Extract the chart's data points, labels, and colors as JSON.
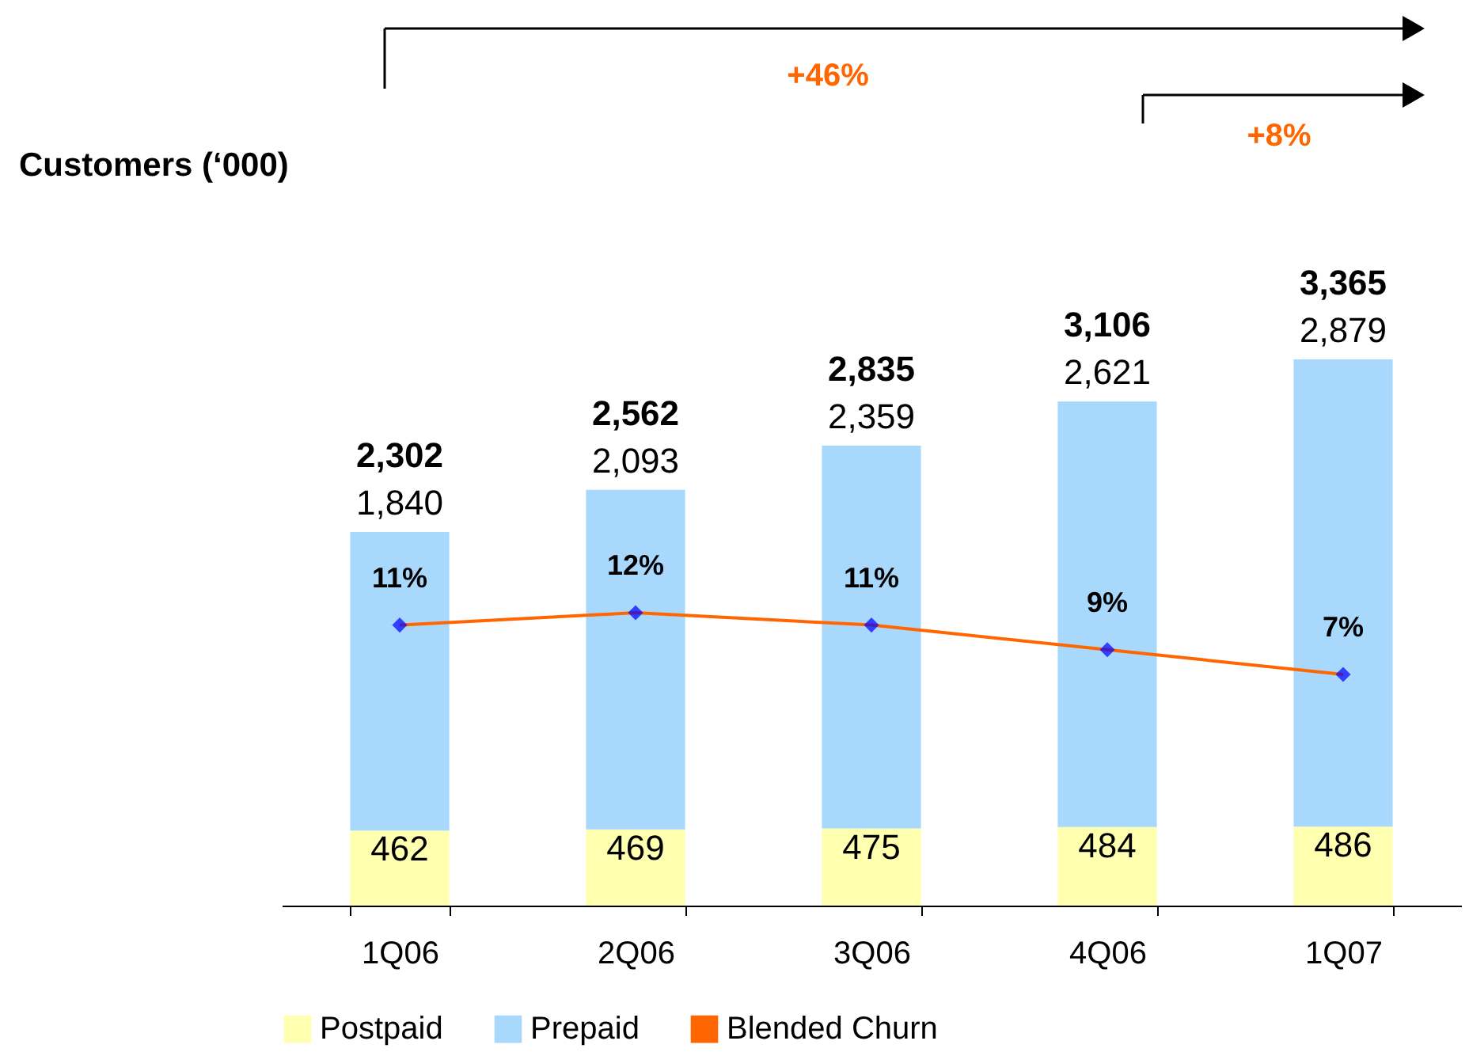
{
  "chart_data": {
    "type": "bar",
    "stacked": true,
    "categories": [
      "1Q06",
      "2Q06",
      "3Q06",
      "4Q06",
      "1Q07"
    ],
    "series": [
      {
        "name": "Postpaid",
        "color": "#ffffb0",
        "values": [
          462,
          469,
          475,
          484,
          486
        ]
      },
      {
        "name": "Prepaid",
        "color": "#a8d8fc",
        "values": [
          1840,
          2093,
          2359,
          2621,
          2879
        ],
        "value_labels": [
          "1,840",
          "2,093",
          "2,359",
          "2,621",
          "2,879"
        ]
      },
      {
        "name": "Blended Churn",
        "type": "line",
        "axis": "y2",
        "color": "#ff6600",
        "marker": "diamond",
        "colors": [
          "#0000ff",
          "#0000ff",
          "#0000ff",
          "#0000ff",
          "#0000ff"
        ],
        "value_labels": [
          "11%",
          "12%",
          "11%",
          "9%",
          "7%"
        ],
        "values": [
          11,
          12,
          11,
          9,
          7
        ]
      }
    ],
    "totals": [
      "2,302",
      "2,562",
      "2,835",
      "3,106",
      "3,365"
    ],
    "annotations": [
      "+46%",
      "+8%",
      "Customers (‘000)"
    ],
    "data_labels": true,
    "grid": false,
    "legend": "bottom"
  }
}
